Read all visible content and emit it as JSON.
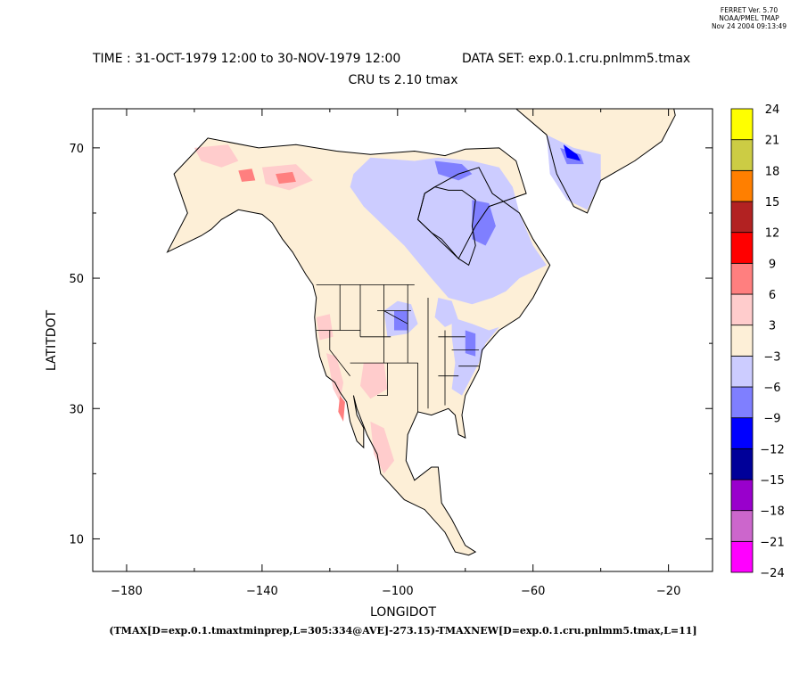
{
  "header": {
    "version_lines": [
      "FERRET Ver. 5.70",
      "NOAA/PMEL TMAP",
      "Nov 24 2004 09:13:49"
    ],
    "title_line1": "TIME : 31-OCT-1979 12:00 to 30-NOV-1979 12:00",
    "dataset_label": "DATA SET: exp.0.1.cru.pnlmm5.tmax",
    "title_line2": "CRU ts 2.10 tmax"
  },
  "chart_data": {
    "type": "heatmap",
    "title": "CRU ts 2.10 tmax",
    "xlabel": "LONGIDOT",
    "ylabel": "LATITDOT",
    "xlim": [
      -190,
      -7
    ],
    "ylim": [
      5,
      76
    ],
    "x_ticks": [
      -180,
      -140,
      -100,
      -60,
      -20
    ],
    "x_tick_labels": [
      "−180",
      "−140",
      "−100",
      "−60",
      "−20"
    ],
    "x_minor_ticks": [
      -160,
      -120,
      -80,
      -40
    ],
    "y_ticks": [
      10,
      30,
      50,
      70
    ],
    "y_tick_labels": [
      "10",
      "30",
      "50",
      "70"
    ],
    "y_minor_ticks": [
      20,
      40,
      60
    ],
    "expression": "(TMAX[D=exp.0.1.tmaxtminprep,L=305:334@AVE]-273.15)-TMAXNEW[D=exp.0.1.cru.pnlmm5.tmax,L=11]",
    "colorbar": {
      "levels": [
        -24,
        -21,
        -18,
        -15,
        -12,
        -9,
        -6,
        -3,
        3,
        6,
        9,
        12,
        15,
        18,
        21,
        24
      ],
      "labels": [
        "−24",
        "−21",
        "−18",
        "−15",
        "−12",
        "−9",
        "−6",
        "−3",
        "3",
        "6",
        "9",
        "12",
        "15",
        "18",
        "21",
        "24"
      ],
      "colors": [
        "#ff00ff",
        "#cc66cc",
        "#9900cc",
        "#000099",
        "#0000ff",
        "#7f7fff",
        "#ccccff",
        "#fdefd7",
        "#ffcccc",
        "#ff7f7f",
        "#ff0000",
        "#b22222",
        "#ff7f00",
        "#cccc44",
        "#ffff00"
      ]
    },
    "regions": [
      {
        "name": "land-background",
        "class": 7,
        "poly": [
          [
            -168,
            54
          ],
          [
            -162,
            60
          ],
          [
            -166,
            66
          ],
          [
            -156,
            71.5
          ],
          [
            -141,
            70
          ],
          [
            -130,
            70.5
          ],
          [
            -118,
            69.5
          ],
          [
            -108,
            69
          ],
          [
            -95,
            69.5
          ],
          [
            -86,
            68.8
          ],
          [
            -80,
            69.8
          ],
          [
            -70,
            70
          ],
          [
            -65,
            68
          ],
          [
            -62,
            63
          ],
          [
            -73,
            61
          ],
          [
            -77,
            58
          ],
          [
            -82,
            53
          ],
          [
            -90,
            57
          ],
          [
            -94,
            59
          ],
          [
            -92,
            63
          ],
          [
            -89,
            64
          ],
          [
            -82,
            66
          ],
          [
            -76,
            67
          ],
          [
            -72,
            63
          ],
          [
            -64,
            60
          ],
          [
            -60,
            56
          ],
          [
            -55,
            52
          ],
          [
            -60,
            47
          ],
          [
            -64,
            44
          ],
          [
            -70,
            42
          ],
          [
            -75,
            39
          ],
          [
            -76,
            36
          ],
          [
            -80,
            32
          ],
          [
            -81,
            29
          ],
          [
            -80,
            25.5
          ],
          [
            -82,
            26
          ],
          [
            -83,
            29
          ],
          [
            -85,
            30
          ],
          [
            -90,
            29
          ],
          [
            -94,
            29.5
          ],
          [
            -97,
            26
          ],
          [
            -97.5,
            22
          ],
          [
            -95,
            19
          ],
          [
            -90,
            21
          ],
          [
            -88,
            21
          ],
          [
            -87,
            15.5
          ],
          [
            -84,
            13
          ],
          [
            -80,
            9
          ],
          [
            -77,
            8
          ],
          [
            -79,
            7.5
          ],
          [
            -83,
            8
          ],
          [
            -86,
            11
          ],
          [
            -92,
            14.5
          ],
          [
            -98,
            16
          ],
          [
            -105,
            20
          ],
          [
            -106,
            23
          ],
          [
            -109,
            26
          ],
          [
            -112,
            30
          ],
          [
            -113,
            32
          ],
          [
            -112,
            29
          ],
          [
            -110,
            27
          ],
          [
            -110,
            24
          ],
          [
            -112,
            25
          ],
          [
            -114,
            28
          ],
          [
            -115,
            31
          ],
          [
            -117,
            32.5
          ],
          [
            -118.5,
            34
          ],
          [
            -121,
            35
          ],
          [
            -123,
            38
          ],
          [
            -124,
            41
          ],
          [
            -124.5,
            44
          ],
          [
            -124,
            47
          ],
          [
            -125,
            49
          ],
          [
            -127,
            50.5
          ],
          [
            -131,
            54
          ],
          [
            -134,
            56
          ],
          [
            -137,
            58.5
          ],
          [
            -140,
            59.8
          ],
          [
            -147,
            60.5
          ],
          [
            -152,
            59
          ],
          [
            -155,
            57.5
          ],
          [
            -158,
            56.5
          ]
        ]
      },
      {
        "name": "hudson-bay",
        "class": 7,
        "poly": [
          [
            -94,
            59
          ],
          [
            -92,
            63
          ],
          [
            -89,
            64
          ],
          [
            -85,
            63.5
          ],
          [
            -81,
            63.5
          ],
          [
            -77,
            62
          ],
          [
            -78,
            58
          ],
          [
            -77,
            55
          ],
          [
            -79,
            52
          ],
          [
            -82,
            53
          ],
          [
            -87,
            56
          ],
          [
            -90,
            57
          ]
        ]
      },
      {
        "name": "greenland-land",
        "class": 7,
        "poly": [
          [
            -73,
            78
          ],
          [
            -60,
            82
          ],
          [
            -40,
            83
          ],
          [
            -20,
            80
          ],
          [
            -18,
            75
          ],
          [
            -22,
            71
          ],
          [
            -30,
            68
          ],
          [
            -40,
            65
          ],
          [
            -44,
            60
          ],
          [
            -48,
            61
          ],
          [
            -53,
            66
          ],
          [
            -56,
            72
          ],
          [
            -65,
            76
          ],
          [
            -72,
            77.5
          ]
        ]
      },
      {
        "name": "canada-blue",
        "class": 6,
        "poly": [
          [
            -113,
            66
          ],
          [
            -108,
            68.5
          ],
          [
            -95,
            68
          ],
          [
            -88,
            68.5
          ],
          [
            -78,
            68
          ],
          [
            -70,
            67
          ],
          [
            -66,
            64
          ],
          [
            -64,
            60
          ],
          [
            -60,
            55
          ],
          [
            -56,
            52
          ],
          [
            -64,
            50
          ],
          [
            -68,
            48
          ],
          [
            -72,
            47
          ],
          [
            -78,
            46
          ],
          [
            -85,
            47
          ],
          [
            -90,
            50
          ],
          [
            -98,
            55
          ],
          [
            -104,
            58
          ],
          [
            -110,
            61
          ],
          [
            -114,
            64
          ]
        ]
      },
      {
        "name": "greenland-blue",
        "class": 6,
        "poly": [
          [
            -56,
            72
          ],
          [
            -48,
            70
          ],
          [
            -40,
            69
          ],
          [
            -40,
            65
          ],
          [
            -44,
            60.5
          ],
          [
            -50,
            62
          ],
          [
            -55,
            66
          ]
        ]
      },
      {
        "name": "us-blue-ne",
        "class": 6,
        "poly": [
          [
            -84,
            44
          ],
          [
            -78,
            43
          ],
          [
            -73,
            42
          ],
          [
            -70,
            42.5
          ],
          [
            -74,
            40
          ],
          [
            -76,
            37
          ],
          [
            -79,
            34
          ],
          [
            -81,
            32
          ],
          [
            -84,
            33
          ],
          [
            -83,
            37
          ],
          [
            -84,
            41
          ]
        ]
      },
      {
        "name": "us-blue-midwest",
        "class": 6,
        "poly": [
          [
            -104,
            45
          ],
          [
            -100,
            46.5
          ],
          [
            -96,
            46
          ],
          [
            -94,
            43
          ],
          [
            -97,
            41.5
          ],
          [
            -103,
            41
          ]
        ]
      },
      {
        "name": "us-blue-great-lakes",
        "class": 6,
        "poly": [
          [
            -88,
            47
          ],
          [
            -84,
            46.5
          ],
          [
            -82,
            43.5
          ],
          [
            -86,
            42.5
          ],
          [
            -89,
            44
          ]
        ]
      },
      {
        "name": "hudson-east-darkblue",
        "class": 5,
        "poly": [
          [
            -78,
            62
          ],
          [
            -73,
            61.5
          ],
          [
            -71,
            58
          ],
          [
            -74,
            55
          ],
          [
            -78,
            56
          ]
        ]
      },
      {
        "name": "canada-north-darkblue",
        "class": 5,
        "poly": [
          [
            -89,
            68
          ],
          [
            -81,
            67.5
          ],
          [
            -78,
            66
          ],
          [
            -82,
            65
          ],
          [
            -88,
            66
          ]
        ]
      },
      {
        "name": "us-darkblue-plains",
        "class": 5,
        "poly": [
          [
            -101,
            45
          ],
          [
            -97,
            45
          ],
          [
            -97,
            42
          ],
          [
            -101,
            42
          ]
        ]
      },
      {
        "name": "us-darkblue-east",
        "class": 5,
        "poly": [
          [
            -80,
            42
          ],
          [
            -77,
            41.5
          ],
          [
            -77,
            38
          ],
          [
            -80,
            38.5
          ]
        ]
      },
      {
        "name": "greenland-darkblue",
        "class": 5,
        "poly": [
          [
            -52,
            70
          ],
          [
            -46,
            69
          ],
          [
            -45,
            67.5
          ],
          [
            -50,
            67.5
          ]
        ]
      },
      {
        "name": "greenland-blue-core",
        "class": 4,
        "poly": [
          [
            -51,
            70.5
          ],
          [
            -47,
            69
          ],
          [
            -46,
            68
          ],
          [
            -50,
            68.5
          ]
        ]
      },
      {
        "name": "alaska-pink",
        "class": 8,
        "poly": [
          [
            -160,
            70
          ],
          [
            -150,
            70.5
          ],
          [
            -147,
            68
          ],
          [
            -152,
            67
          ],
          [
            -158,
            68
          ]
        ]
      },
      {
        "name": "yukon-pink",
        "class": 8,
        "poly": [
          [
            -140,
            67
          ],
          [
            -130,
            67.5
          ],
          [
            -125,
            65
          ],
          [
            -132,
            63.5
          ],
          [
            -139,
            64.5
          ]
        ]
      },
      {
        "name": "california-pink",
        "class": 8,
        "poly": [
          [
            -121,
            38.5
          ],
          [
            -118,
            38
          ],
          [
            -116,
            34
          ],
          [
            -117,
            31
          ],
          [
            -119,
            33
          ],
          [
            -120,
            36
          ]
        ]
      },
      {
        "name": "southwest-pink",
        "class": 8,
        "poly": [
          [
            -110,
            37
          ],
          [
            -104,
            37
          ],
          [
            -103,
            33
          ],
          [
            -108,
            31.5
          ],
          [
            -111,
            33.5
          ]
        ]
      },
      {
        "name": "mexico-pink",
        "class": 8,
        "poly": [
          [
            -108,
            28
          ],
          [
            -104,
            27
          ],
          [
            -101,
            22
          ],
          [
            -104,
            20
          ],
          [
            -107,
            23
          ]
        ]
      },
      {
        "name": "oregon-pink",
        "class": 8,
        "poly": [
          [
            -124,
            44
          ],
          [
            -120,
            44.5
          ],
          [
            -119,
            41
          ],
          [
            -123,
            40.5
          ]
        ]
      },
      {
        "name": "alaska-red",
        "class": 9,
        "poly": [
          [
            -147,
            66.5
          ],
          [
            -143,
            66.8
          ],
          [
            -142,
            65
          ],
          [
            -146,
            64.8
          ]
        ]
      },
      {
        "name": "yukon-red",
        "class": 9,
        "poly": [
          [
            -136,
            66
          ],
          [
            -131,
            66.3
          ],
          [
            -130,
            64.8
          ],
          [
            -135,
            64.5
          ]
        ]
      },
      {
        "name": "baja-red",
        "class": 9,
        "poly": [
          [
            -117,
            32
          ],
          [
            -115.5,
            31
          ],
          [
            -116,
            28
          ],
          [
            -117.5,
            29.5
          ]
        ]
      }
    ]
  }
}
